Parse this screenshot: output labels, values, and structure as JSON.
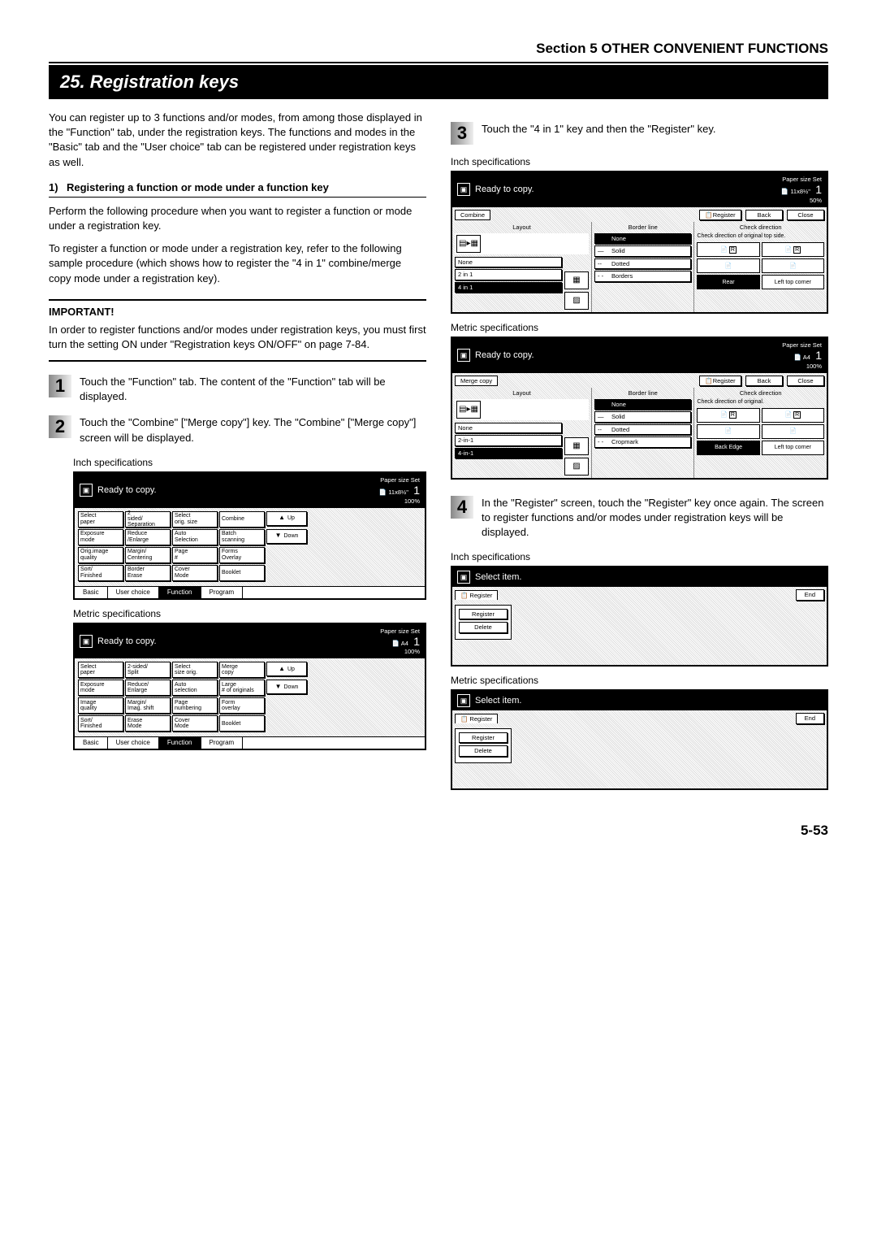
{
  "section_header": "Section 5  OTHER CONVENIENT FUNCTIONS",
  "title": "25. Registration keys",
  "intro": "You can register up to 3 functions and/or modes, from among those displayed in the \"Function\" tab, under the registration keys. The functions and modes in the \"Basic\" tab and the \"User choice\" tab can be registered under registration keys as well.",
  "sub1_num": "1)",
  "sub1_title": "Registering a function or mode under a function key",
  "sub1_p1": "Perform the following procedure when you want to register a function or mode under a registration key.",
  "sub1_p2": "To register a function or mode under a registration key, refer to the following sample procedure (which shows how to register the \"4 in 1\" combine/merge copy mode under a registration key).",
  "imp_label": "IMPORTANT!",
  "imp_text": "In order to register functions and/or modes under registration keys, you must first turn the setting ON under \"Registration keys ON/OFF\" on page 7-84.",
  "step1": "Touch the \"Function\" tab. The content of the \"Function\" tab will be displayed.",
  "step2": "Touch the \"Combine\" [\"Merge copy\"] key. The \"Combine\" [\"Merge copy\"] screen will be displayed.",
  "step3": "Touch the \"4 in 1\" key and then the \"Register\" key.",
  "step4": "In the \"Register\" screen, touch the \"Register\" key once again. The screen to register functions and/or modes under registration keys will be displayed.",
  "spec_inch": "Inch specifications",
  "spec_metric": "Metric specifications",
  "panel_fn_inch": {
    "status": "Ready to copy.",
    "paper": "Paper size     Set",
    "size": "11x8½\"",
    "zoom": "100%",
    "count": "1",
    "rows": [
      [
        "Select paper",
        "2 sided/ Separation",
        "Select orig. size",
        "Combine"
      ],
      [
        "Exposure mode",
        "Reduce /Enlarge",
        "Auto Selection",
        "Batch scanning"
      ],
      [
        "Orig.image quality",
        "Margin/ Centering",
        "Page #",
        "Forms Overlay"
      ],
      [
        "Sort/ Finished",
        "Border Erase",
        "Cover Mode",
        "Booklet"
      ]
    ],
    "nav": [
      "Up",
      "Down"
    ],
    "tabs": [
      "Basic",
      "User choice",
      "Function",
      "Program"
    ]
  },
  "panel_fn_metric": {
    "status": "Ready to copy.",
    "paper": "Paper size     Set",
    "size": "A4",
    "zoom": "100%",
    "count": "1",
    "rows": [
      [
        "Select paper",
        "2-sided/ Split",
        "Select size orig.",
        "Merge copy"
      ],
      [
        "Exposure mode",
        "Reduce/ Enlarge",
        "Auto selection",
        "Large # of originals"
      ],
      [
        "Image quality",
        "Margin/ Imag. shift",
        "Page numbering",
        "Form overlay"
      ],
      [
        "Sort/ Finished",
        "Erase Mode",
        "Cover Mode",
        "Booklet"
      ]
    ],
    "nav": [
      "Up",
      "Down"
    ],
    "tabs": [
      "Basic",
      "User choice",
      "Function",
      "Program"
    ]
  },
  "panel_cb_inch": {
    "status": "Ready to copy.",
    "paper": "Paper size     Set",
    "size": "11x8½\"",
    "zoom": "50%",
    "count": "1",
    "mode": "Combine",
    "register": "Register",
    "back": "Back",
    "close": "Close",
    "col1_title": "Layout",
    "col1_opts": [
      "None",
      "2  in  1",
      "4  in  1"
    ],
    "col2_title": "Border line",
    "col2_opts": [
      "None",
      "Solid",
      "Dotted",
      "Borders"
    ],
    "col3_title": "Check direction",
    "col3_sub": "Check direction of original top side.",
    "dir_row2": [
      "Rear",
      "Left top corner"
    ]
  },
  "panel_cb_metric": {
    "status": "Ready to copy.",
    "paper": "Paper size     Set",
    "size": "A4",
    "zoom": "100%",
    "count": "1",
    "mode": "Merge copy",
    "register": "Register",
    "back": "Back",
    "close": "Close",
    "col1_title": "Layout",
    "col1_opts": [
      "None",
      "2-in-1",
      "4-in-1"
    ],
    "col2_title": "Border line",
    "col2_opts": [
      "None",
      "Solid",
      "Dotted",
      "Cropmark"
    ],
    "col3_title": "Check direction",
    "col3_sub": "Check direction of original.",
    "dir_row2": [
      "Back Edge",
      "Left top corner"
    ]
  },
  "panel_sel": {
    "status": "Select item.",
    "tab": "Register",
    "end": "End",
    "btns": [
      "Register",
      "Delete"
    ]
  },
  "page_num": "5-53"
}
